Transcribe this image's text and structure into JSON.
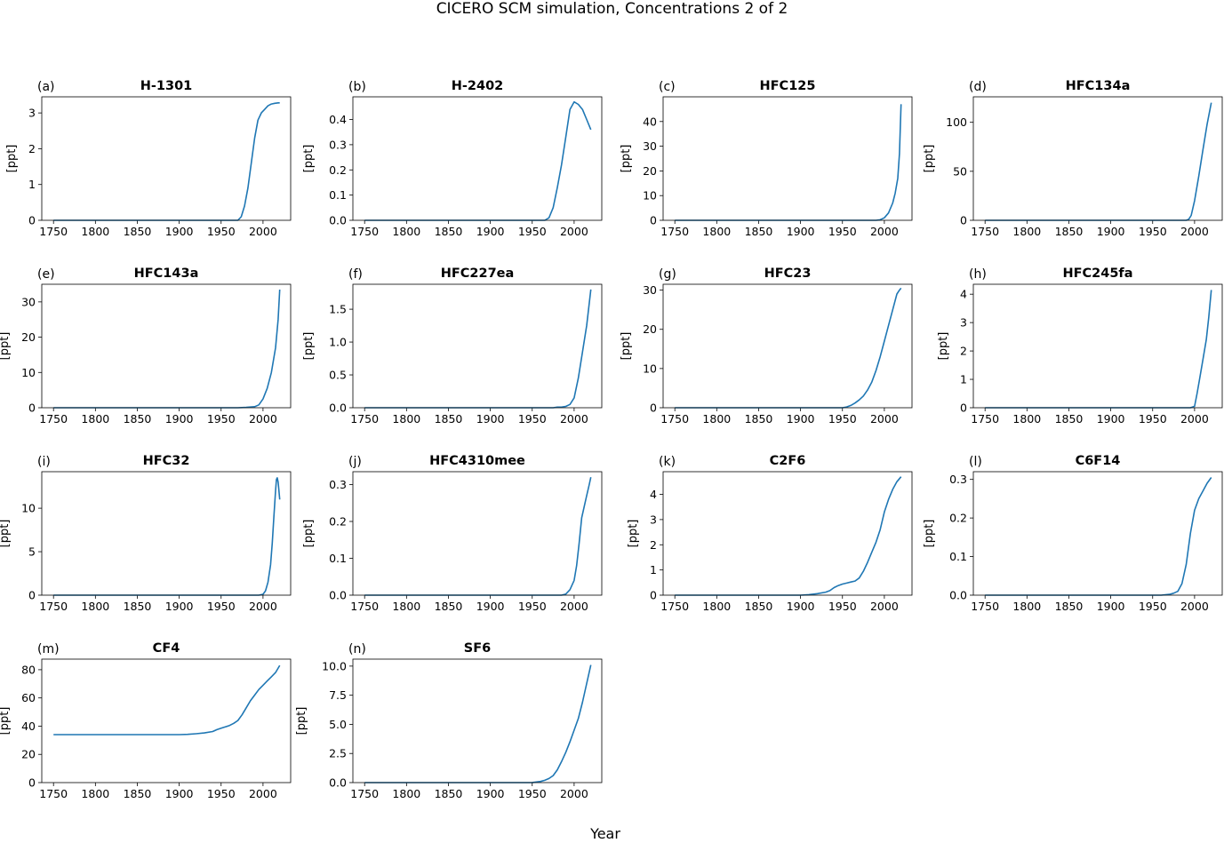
{
  "figure": {
    "title": "CICERO SCM simulation, Concentrations 2 of 2",
    "xlabel": "Year"
  },
  "style": {
    "line_color": "#1f77b4"
  },
  "chart_data": [
    {
      "type": "line",
      "panel": "(a)",
      "title": "H-1301",
      "ylabel": "[ppt]",
      "xlim": [
        1736,
        2033
      ],
      "xticks": [
        1750,
        1800,
        1850,
        1900,
        1950,
        2000
      ],
      "ylim": [
        0,
        3.45
      ],
      "yticks": [
        0,
        1,
        2,
        3
      ],
      "ytick_labels": [
        "0",
        "1",
        "2",
        "3"
      ],
      "series": [
        {
          "x": [
            1750,
            1900,
            1970,
            1974,
            1978,
            1982,
            1986,
            1990,
            1994,
            1998,
            2002,
            2006,
            2010,
            2014,
            2018,
            2020
          ],
          "values": [
            0,
            0,
            0,
            0.1,
            0.4,
            0.9,
            1.6,
            2.3,
            2.8,
            3.0,
            3.1,
            3.2,
            3.25,
            3.27,
            3.28,
            3.28
          ]
        }
      ]
    },
    {
      "type": "line",
      "panel": "(b)",
      "title": "H-2402",
      "ylabel": "[ppt]",
      "xlim": [
        1736,
        2033
      ],
      "xticks": [
        1750,
        1800,
        1850,
        1900,
        1950,
        2000
      ],
      "ylim": [
        0,
        0.49
      ],
      "yticks": [
        0,
        0.1,
        0.2,
        0.3,
        0.4
      ],
      "ytick_labels": [
        "0.0",
        "0.1",
        "0.2",
        "0.3",
        "0.4"
      ],
      "series": [
        {
          "x": [
            1750,
            1900,
            1965,
            1970,
            1975,
            1980,
            1985,
            1990,
            1995,
            2000,
            2005,
            2010,
            2015,
            2020
          ],
          "values": [
            0,
            0,
            0,
            0.01,
            0.05,
            0.13,
            0.22,
            0.33,
            0.44,
            0.47,
            0.46,
            0.44,
            0.4,
            0.36
          ]
        }
      ]
    },
    {
      "type": "line",
      "panel": "(c)",
      "title": "HFC125",
      "ylabel": "[ppt]",
      "xlim": [
        1736,
        2033
      ],
      "xticks": [
        1750,
        1800,
        1850,
        1900,
        1950,
        2000
      ],
      "ylim": [
        0,
        50
      ],
      "yticks": [
        0,
        10,
        20,
        30,
        40
      ],
      "ytick_labels": [
        "0",
        "10",
        "20",
        "30",
        "40"
      ],
      "series": [
        {
          "x": [
            1750,
            1900,
            1990,
            1995,
            2000,
            2005,
            2010,
            2013,
            2016,
            2018,
            2020
          ],
          "values": [
            0,
            0,
            0,
            0.2,
            1,
            3,
            7,
            11,
            17,
            27,
            47
          ]
        }
      ]
    },
    {
      "type": "line",
      "panel": "(d)",
      "title": "HFC134a",
      "ylabel": "[ppt]",
      "xlim": [
        1736,
        2033
      ],
      "xticks": [
        1750,
        1800,
        1850,
        1900,
        1950,
        2000
      ],
      "ylim": [
        0,
        126
      ],
      "yticks": [
        0,
        50,
        100
      ],
      "ytick_labels": [
        "0",
        "50",
        "100"
      ],
      "series": [
        {
          "x": [
            1750,
            1900,
            1990,
            1993,
            1996,
            2000,
            2005,
            2010,
            2015,
            2020
          ],
          "values": [
            0,
            0,
            0,
            1,
            5,
            20,
            45,
            72,
            98,
            120
          ]
        }
      ]
    },
    {
      "type": "line",
      "panel": "(e)",
      "title": "HFC143a",
      "ylabel": "[ppt]",
      "xlim": [
        1736,
        2033
      ],
      "xticks": [
        1750,
        1800,
        1850,
        1900,
        1950,
        2000
      ],
      "ylim": [
        0,
        35
      ],
      "yticks": [
        0,
        10,
        20,
        30
      ],
      "ytick_labels": [
        "0",
        "10",
        "20",
        "30"
      ],
      "series": [
        {
          "x": [
            1750,
            1900,
            1970,
            1980,
            1990,
            1995,
            2000,
            2005,
            2010,
            2015,
            2018,
            2020
          ],
          "values": [
            0,
            0,
            0,
            0.1,
            0.3,
            0.8,
            2.5,
            5.5,
            10,
            17,
            25,
            33.5
          ]
        }
      ]
    },
    {
      "type": "line",
      "panel": "(f)",
      "title": "HFC227ea",
      "ylabel": "[ppt]",
      "xlim": [
        1736,
        2033
      ],
      "xticks": [
        1750,
        1800,
        1850,
        1900,
        1950,
        2000
      ],
      "ylim": [
        0,
        1.88
      ],
      "yticks": [
        0,
        0.5,
        1.0,
        1.5
      ],
      "ytick_labels": [
        "0.0",
        "0.5",
        "1.0",
        "1.5"
      ],
      "series": [
        {
          "x": [
            1750,
            1900,
            1975,
            1980,
            1985,
            1990,
            1995,
            2000,
            2005,
            2010,
            2015,
            2020
          ],
          "values": [
            0,
            0,
            0,
            0.01,
            0.01,
            0.02,
            0.05,
            0.15,
            0.45,
            0.85,
            1.25,
            1.8
          ]
        }
      ]
    },
    {
      "type": "line",
      "panel": "(g)",
      "title": "HFC23",
      "ylabel": "[ppt]",
      "xlim": [
        1736,
        2033
      ],
      "xticks": [
        1750,
        1800,
        1850,
        1900,
        1950,
        2000
      ],
      "ylim": [
        0,
        31.5
      ],
      "yticks": [
        0,
        10,
        20,
        30
      ],
      "ytick_labels": [
        "0",
        "10",
        "20",
        "30"
      ],
      "series": [
        {
          "x": [
            1750,
            1900,
            1950,
            1955,
            1960,
            1965,
            1970,
            1975,
            1980,
            1985,
            1990,
            1995,
            2000,
            2005,
            2010,
            2015,
            2018,
            2020
          ],
          "values": [
            0,
            0,
            0,
            0.2,
            0.6,
            1.2,
            2.0,
            3.0,
            4.5,
            6.5,
            9.5,
            13,
            17,
            21,
            25,
            29,
            30,
            30.5
          ]
        }
      ]
    },
    {
      "type": "line",
      "panel": "(h)",
      "title": "HFC245fa",
      "ylabel": "[ppt]",
      "xlim": [
        1736,
        2033
      ],
      "xticks": [
        1750,
        1800,
        1850,
        1900,
        1950,
        2000
      ],
      "ylim": [
        0,
        4.35
      ],
      "yticks": [
        0,
        1,
        2,
        3,
        4
      ],
      "ytick_labels": [
        "0",
        "1",
        "2",
        "3",
        "4"
      ],
      "series": [
        {
          "x": [
            1750,
            1900,
            1995,
            2000,
            2003,
            2006,
            2010,
            2014,
            2017,
            2020
          ],
          "values": [
            0,
            0,
            0,
            0.05,
            0.5,
            1.0,
            1.7,
            2.4,
            3.2,
            4.15
          ]
        }
      ]
    },
    {
      "type": "line",
      "panel": "(i)",
      "title": "HFC32",
      "ylabel": "[ppt]",
      "xlim": [
        1736,
        2033
      ],
      "xticks": [
        1750,
        1800,
        1850,
        1900,
        1950,
        2000
      ],
      "ylim": [
        0,
        14.2
      ],
      "yticks": [
        0,
        5,
        10
      ],
      "ytick_labels": [
        "0",
        "5",
        "10"
      ],
      "series": [
        {
          "x": [
            1750,
            1900,
            1995,
            2000,
            2003,
            2006,
            2009,
            2011,
            2013,
            2015,
            2016,
            2017,
            2018,
            2019,
            2020
          ],
          "values": [
            0,
            0,
            0,
            0.1,
            0.5,
            1.5,
            3.5,
            6,
            9,
            12,
            13.3,
            13.5,
            13,
            12,
            11
          ]
        }
      ]
    },
    {
      "type": "line",
      "panel": "(j)",
      "title": "HFC4310mee",
      "ylabel": "[ppt]",
      "xlim": [
        1736,
        2033
      ],
      "xticks": [
        1750,
        1800,
        1850,
        1900,
        1950,
        2000
      ],
      "ylim": [
        0,
        0.335
      ],
      "yticks": [
        0,
        0.1,
        0.2,
        0.3
      ],
      "ytick_labels": [
        "0.0",
        "0.1",
        "0.2",
        "0.3"
      ],
      "series": [
        {
          "x": [
            1750,
            1900,
            1985,
            1990,
            1995,
            2000,
            2003,
            2006,
            2009,
            2012,
            2015,
            2018,
            2020
          ],
          "values": [
            0,
            0,
            0,
            0.003,
            0.015,
            0.04,
            0.08,
            0.14,
            0.21,
            0.24,
            0.27,
            0.3,
            0.32
          ]
        }
      ]
    },
    {
      "type": "line",
      "panel": "(k)",
      "title": "C2F6",
      "ylabel": "[ppt]",
      "xlim": [
        1736,
        2033
      ],
      "xticks": [
        1750,
        1800,
        1850,
        1900,
        1950,
        2000
      ],
      "ylim": [
        0,
        4.9
      ],
      "yticks": [
        0,
        1,
        2,
        3,
        4
      ],
      "ytick_labels": [
        "0",
        "1",
        "2",
        "3",
        "4"
      ],
      "series": [
        {
          "x": [
            1750,
            1900,
            1910,
            1920,
            1930,
            1935,
            1940,
            1945,
            1950,
            1955,
            1960,
            1965,
            1970,
            1975,
            1980,
            1985,
            1990,
            1995,
            2000,
            2005,
            2010,
            2015,
            2020
          ],
          "values": [
            0,
            0,
            0.02,
            0.06,
            0.12,
            0.18,
            0.3,
            0.38,
            0.44,
            0.48,
            0.52,
            0.56,
            0.68,
            0.95,
            1.3,
            1.7,
            2.1,
            2.6,
            3.3,
            3.8,
            4.2,
            4.5,
            4.7
          ]
        }
      ]
    },
    {
      "type": "line",
      "panel": "(l)",
      "title": "C6F14",
      "ylabel": "[ppt]",
      "xlim": [
        1736,
        2033
      ],
      "xticks": [
        1750,
        1800,
        1850,
        1900,
        1950,
        2000
      ],
      "ylim": [
        0,
        0.32
      ],
      "yticks": [
        0,
        0.1,
        0.2,
        0.3
      ],
      "ytick_labels": [
        "0.0",
        "0.1",
        "0.2",
        "0.3"
      ],
      "series": [
        {
          "x": [
            1750,
            1900,
            1960,
            1970,
            1975,
            1980,
            1985,
            1990,
            1995,
            2000,
            2005,
            2010,
            2015,
            2020
          ],
          "values": [
            0,
            0,
            0,
            0.002,
            0.005,
            0.01,
            0.03,
            0.08,
            0.16,
            0.22,
            0.25,
            0.27,
            0.29,
            0.305
          ]
        }
      ]
    },
    {
      "type": "line",
      "panel": "(m)",
      "title": "CF4",
      "ylabel": "[ppt]",
      "xlim": [
        1736,
        2033
      ],
      "xticks": [
        1750,
        1800,
        1850,
        1900,
        1950,
        2000
      ],
      "ylim": [
        0,
        87.5
      ],
      "yticks": [
        0,
        20,
        40,
        60,
        80
      ],
      "ytick_labels": [
        "0",
        "20",
        "40",
        "60",
        "80"
      ],
      "series": [
        {
          "x": [
            1750,
            1900,
            1910,
            1920,
            1930,
            1940,
            1945,
            1950,
            1955,
            1960,
            1965,
            1970,
            1975,
            1980,
            1985,
            1990,
            1995,
            2000,
            2005,
            2010,
            2015,
            2020
          ],
          "values": [
            34,
            34,
            34.2,
            34.6,
            35.2,
            36.2,
            37.5,
            38.5,
            39.5,
            40.5,
            42,
            44,
            48,
            53,
            58,
            62,
            66,
            69,
            72,
            75,
            78,
            83
          ]
        }
      ]
    },
    {
      "type": "line",
      "panel": "(n)",
      "title": "SF6",
      "ylabel": "[ppt]",
      "xlim": [
        1736,
        2033
      ],
      "xticks": [
        1750,
        1800,
        1850,
        1900,
        1950,
        2000
      ],
      "ylim": [
        0,
        10.6
      ],
      "yticks": [
        0,
        2.5,
        5.0,
        7.5,
        10.0
      ],
      "ytick_labels": [
        "0.0",
        "2.5",
        "5.0",
        "7.5",
        "10.0"
      ],
      "series": [
        {
          "x": [
            1750,
            1900,
            1950,
            1955,
            1960,
            1965,
            1970,
            1975,
            1980,
            1985,
            1990,
            1995,
            2000,
            2005,
            2010,
            2015,
            2020
          ],
          "values": [
            0,
            0,
            0.01,
            0.05,
            0.1,
            0.2,
            0.35,
            0.6,
            1.1,
            1.8,
            2.6,
            3.5,
            4.5,
            5.5,
            6.9,
            8.5,
            10.1
          ]
        }
      ]
    }
  ]
}
